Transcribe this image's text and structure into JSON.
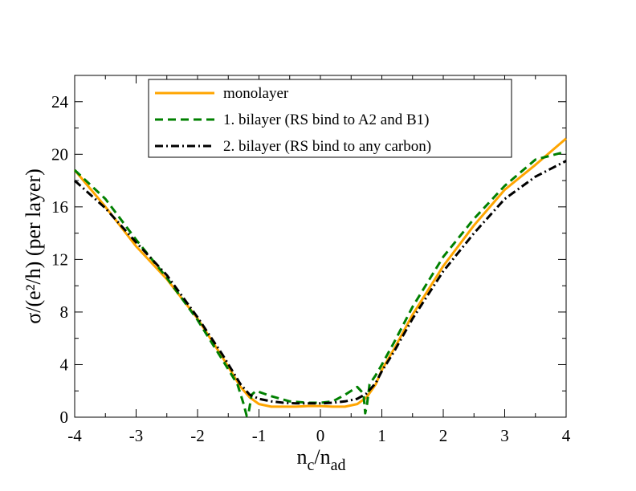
{
  "chart_data": {
    "type": "line",
    "title": "",
    "xlabel": {
      "main": "n",
      "sub1": "c",
      "sep": "/n",
      "sub2": "ad"
    },
    "ylabel": "σ/(e²/h) (per layer)",
    "xlim": [
      -4,
      4
    ],
    "ylim": [
      0,
      26
    ],
    "xticks": [
      -4,
      -3,
      -2,
      -1,
      0,
      1,
      2,
      3,
      4
    ],
    "yticks": [
      0,
      4,
      8,
      12,
      16,
      20,
      24
    ],
    "xtick_labels": [
      "-4",
      "-3",
      "-2",
      "-1",
      "0",
      "1",
      "2",
      "3",
      "4"
    ],
    "ytick_labels": [
      "0",
      "4",
      "8",
      "12",
      "16",
      "20",
      "24"
    ],
    "legend_position": "top-center",
    "series": [
      {
        "name": "monolayer",
        "color": "#ffa500",
        "style": "solid",
        "x": [
          -4,
          -3.5,
          -3,
          -2.5,
          -2,
          -1.6,
          -1.3,
          -1.15,
          -1.0,
          -0.8,
          -0.6,
          -0.4,
          -0.2,
          0,
          0.2,
          0.4,
          0.6,
          0.75,
          0.9,
          1.0,
          1.2,
          1.5,
          2.0,
          2.5,
          3.0,
          3.5,
          4.0
        ],
        "y": [
          18.8,
          16.0,
          13.0,
          10.5,
          7.5,
          4.6,
          2.3,
          1.5,
          1.0,
          0.8,
          0.8,
          0.8,
          0.85,
          0.85,
          0.8,
          0.8,
          1.0,
          1.5,
          2.5,
          3.6,
          5.2,
          7.8,
          11.5,
          14.6,
          17.3,
          19.2,
          21.2
        ]
      },
      {
        "name": "1. bilayer (RS bind to A2 and B1)",
        "color": "#008000",
        "style": "dashed",
        "x": [
          -4,
          -3.5,
          -3,
          -2.5,
          -2,
          -1.6,
          -1.35,
          -1.25,
          -1.2,
          -1.17,
          -1.12,
          -1.05,
          -0.8,
          -0.5,
          -0.2,
          0,
          0.2,
          0.4,
          0.6,
          0.7,
          0.73,
          0.76,
          0.8,
          0.9,
          1.0,
          1.2,
          1.5,
          2.0,
          2.5,
          3.0,
          3.5,
          4.0
        ],
        "y": [
          18.8,
          16.6,
          13.5,
          10.6,
          7.4,
          4.4,
          2.5,
          1.0,
          0.1,
          0.3,
          1.7,
          2.0,
          1.6,
          1.2,
          1.1,
          1.1,
          1.2,
          1.7,
          2.3,
          1.8,
          0.3,
          1.0,
          2.5,
          3.2,
          4.0,
          5.7,
          8.4,
          12.2,
          15.1,
          17.6,
          19.6,
          20.2
        ]
      },
      {
        "name": "2. bilayer (RS bind to any carbon)",
        "color": "#000000",
        "style": "dash-dot",
        "x": [
          -4,
          -3.5,
          -3,
          -2.5,
          -2,
          -1.6,
          -1.3,
          -1.15,
          -1.0,
          -0.8,
          -0.6,
          -0.4,
          -0.2,
          0,
          0.2,
          0.4,
          0.6,
          0.75,
          0.9,
          1.0,
          1.2,
          1.5,
          2.0,
          2.5,
          3.0,
          3.5,
          4.0
        ],
        "y": [
          18.0,
          15.9,
          13.3,
          10.8,
          7.6,
          4.8,
          2.5,
          1.7,
          1.4,
          1.2,
          1.1,
          1.05,
          1.05,
          1.05,
          1.1,
          1.2,
          1.4,
          1.8,
          2.6,
          3.5,
          5.0,
          7.5,
          11.1,
          14.0,
          16.6,
          18.3,
          19.5
        ]
      }
    ]
  }
}
